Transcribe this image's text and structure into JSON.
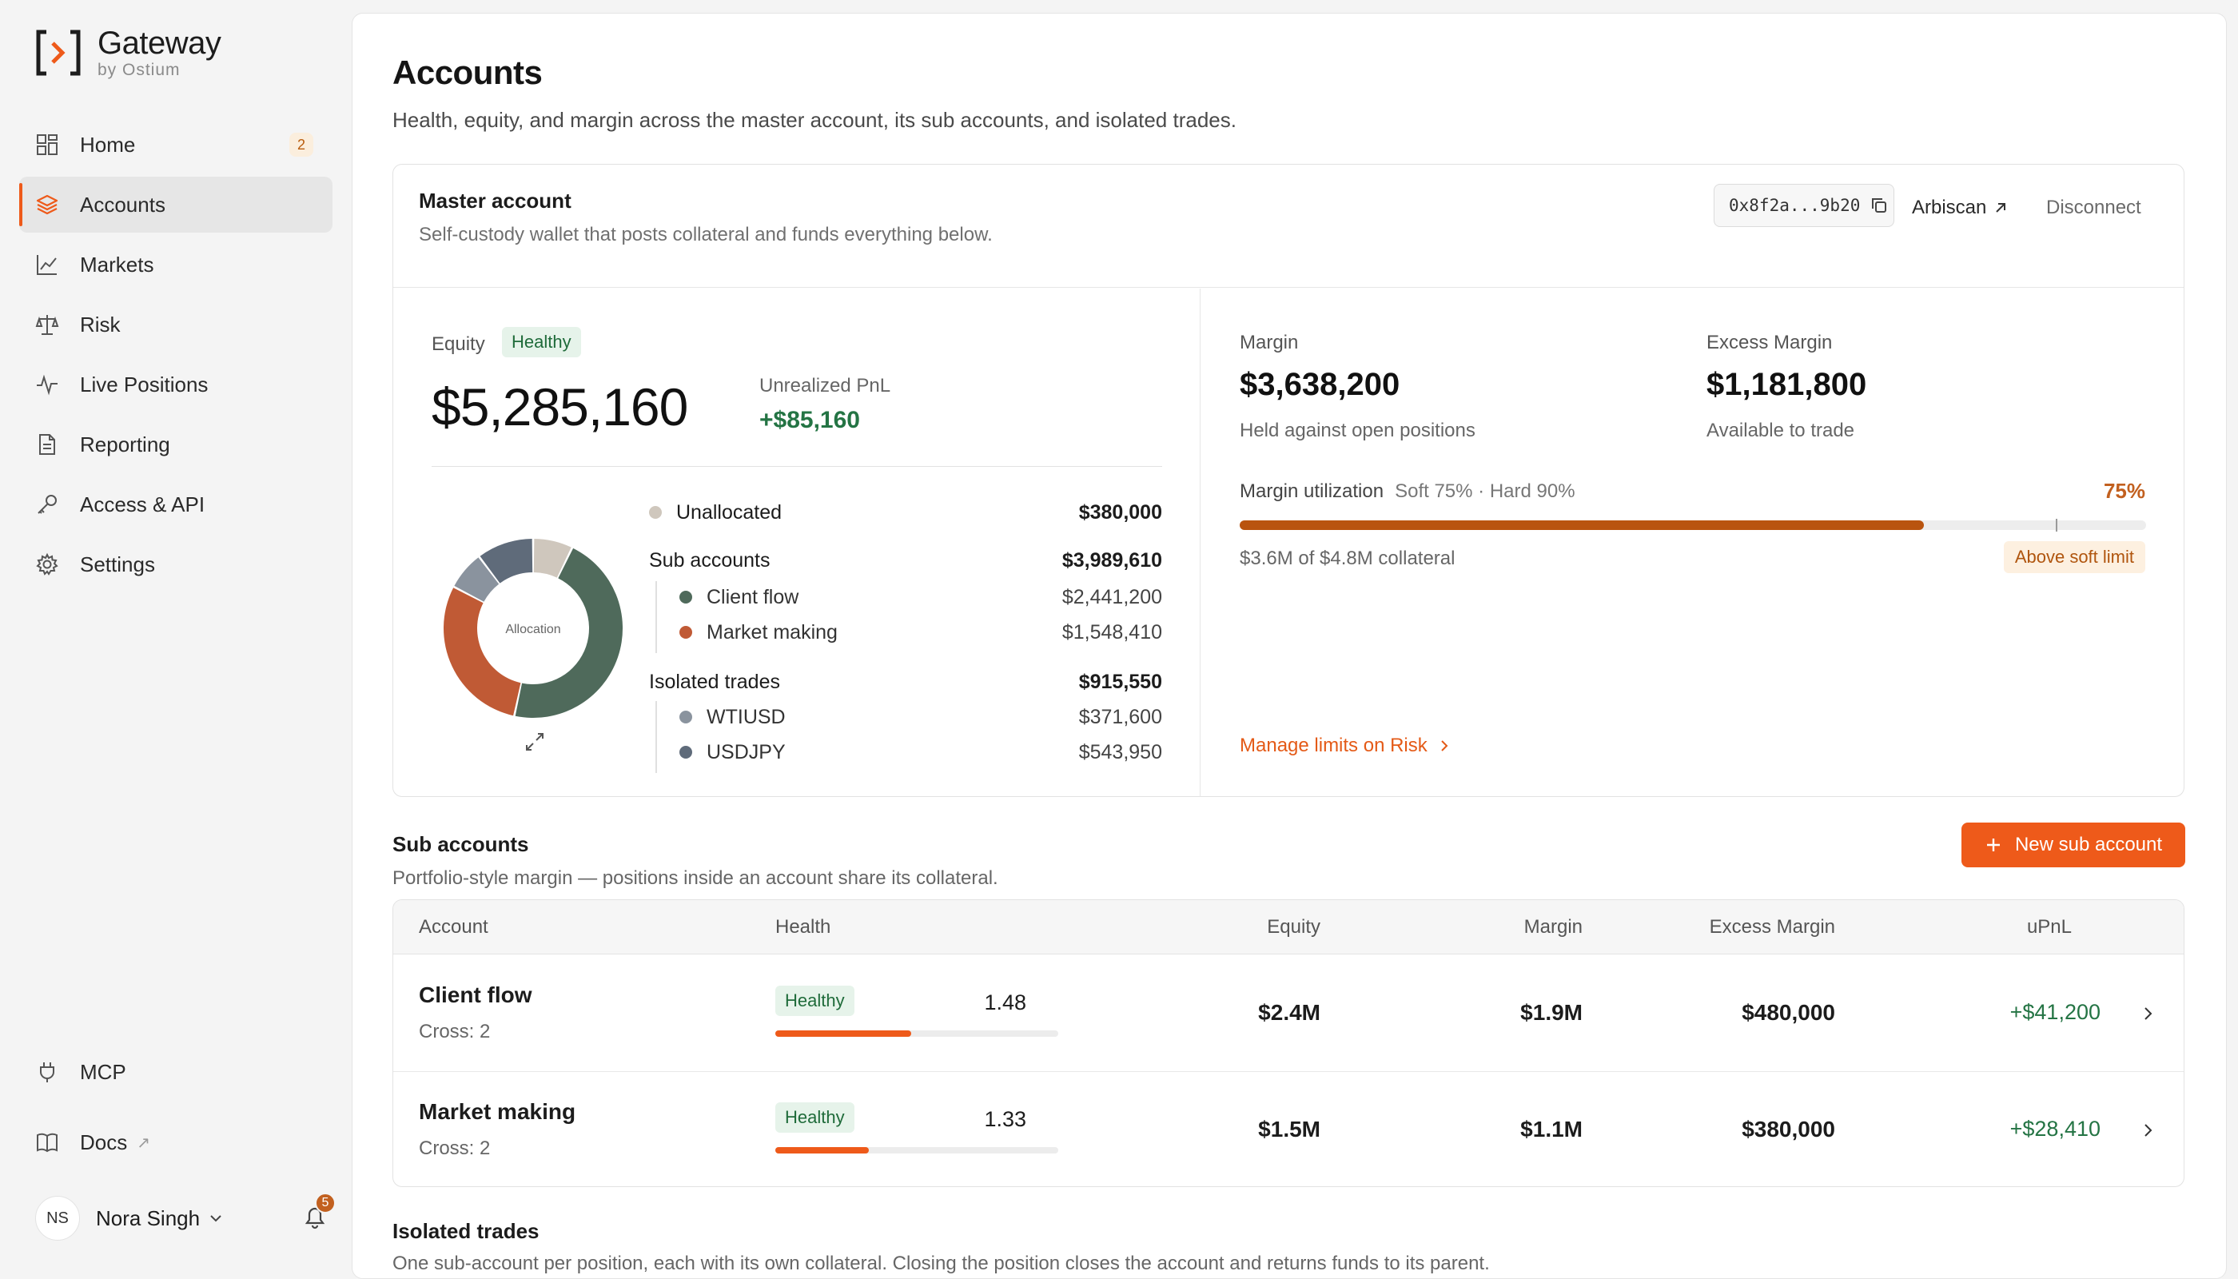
{
  "app": {
    "name": "Gateway",
    "byline": "by Ostium",
    "accent": "#ee5a1a"
  },
  "sidebar": {
    "items": [
      {
        "label": "Home",
        "icon": "grid-icon",
        "badge": "2"
      },
      {
        "label": "Accounts",
        "icon": "layers-icon",
        "active": true
      },
      {
        "label": "Markets",
        "icon": "line-chart-icon"
      },
      {
        "label": "Risk",
        "icon": "scale-icon"
      },
      {
        "label": "Live Positions",
        "icon": "pulse-icon"
      },
      {
        "label": "Reporting",
        "icon": "document-icon"
      },
      {
        "label": "Access & API",
        "icon": "key-icon"
      },
      {
        "label": "Settings",
        "icon": "gear-icon"
      }
    ],
    "bottom": [
      {
        "label": "MCP",
        "icon": "plug-icon"
      },
      {
        "label": "Docs",
        "icon": "book-icon",
        "external": true
      }
    ],
    "user": {
      "initials": "NS",
      "name": "Nora Singh",
      "notifications": "5"
    }
  },
  "page": {
    "title": "Accounts",
    "subtitle": "Health, equity, and margin across the master account, its sub accounts, and isolated trades."
  },
  "master": {
    "title": "Master account",
    "subtitle": "Self-custody wallet that posts collateral and funds everything below.",
    "address": "0x8f2a...9b20",
    "arbiscan": "Arbiscan",
    "disconnect": "Disconnect",
    "equity_label": "Equity",
    "equity_status": "Healthy",
    "equity": "$5,285,160",
    "upnl_label": "Unrealized PnL",
    "upnl": "+$85,160",
    "donut_label": "Allocation",
    "allocation": {
      "unallocated": {
        "label": "Unallocated",
        "value": "$380,000",
        "color": "#cfc7bd"
      },
      "sub_accounts": {
        "label": "Sub accounts",
        "value": "$3,989,610",
        "items": [
          {
            "label": "Client flow",
            "value": "$2,441,200",
            "color": "#4f6a5b"
          },
          {
            "label": "Market making",
            "value": "$1,548,410",
            "color": "#c05a35"
          }
        ]
      },
      "isolated": {
        "label": "Isolated trades",
        "value": "$915,550",
        "items": [
          {
            "label": "WTIUSD",
            "value": "$371,600",
            "color": "#8a939e"
          },
          {
            "label": "USDJPY",
            "value": "$543,950",
            "color": "#5f6b7a"
          }
        ]
      }
    },
    "margin_label": "Margin",
    "margin": "$3,638,200",
    "margin_sub": "Held against open positions",
    "excess_label": "Excess Margin",
    "excess": "$1,181,800",
    "excess_sub": "Available to trade",
    "util_label": "Margin utilization",
    "util_thresholds": "Soft 75% · Hard 90%",
    "util_pct_text": "75%",
    "util_fraction": 0.755,
    "util_hard_fraction": 0.9,
    "util_collateral": "$3.6M of $4.8M collateral",
    "util_badge": "Above soft limit",
    "manage_link": "Manage limits on Risk"
  },
  "sub_accounts": {
    "title": "Sub accounts",
    "subtitle": "Portfolio-style margin — positions inside an account share its collateral.",
    "new_button": "New sub account",
    "columns": [
      "Account",
      "Health",
      "Equity",
      "Margin",
      "Excess Margin",
      "uPnL"
    ],
    "rows": [
      {
        "name": "Client flow",
        "cross": "Cross: 2",
        "health": "Healthy",
        "ratio": "1.48",
        "health_fraction": 0.48,
        "equity": "$2.4M",
        "margin": "$1.9M",
        "excess": "$480,000",
        "upnl": "+$41,200"
      },
      {
        "name": "Market making",
        "cross": "Cross: 2",
        "health": "Healthy",
        "ratio": "1.33",
        "health_fraction": 0.33,
        "equity": "$1.5M",
        "margin": "$1.1M",
        "excess": "$380,000",
        "upnl": "+$28,410"
      }
    ]
  },
  "isolated_section": {
    "title": "Isolated trades",
    "subtitle": "One sub-account per position, each with its own collateral. Closing the position closes the account and returns funds to its parent."
  }
}
